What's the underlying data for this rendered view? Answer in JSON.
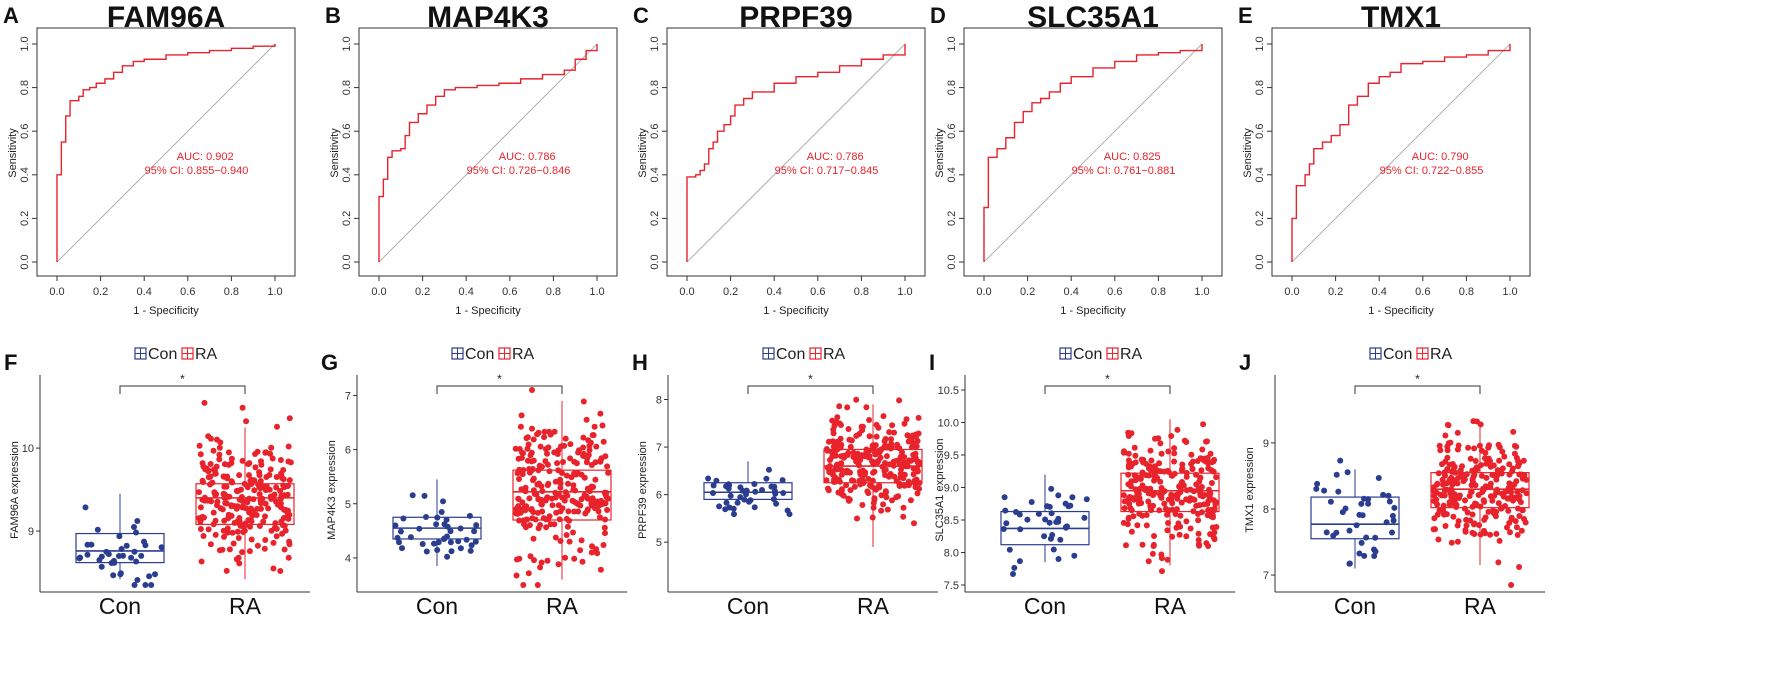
{
  "chart_data": [
    {
      "panel": "A",
      "type": "line",
      "title": "FAM96A",
      "xlabel": "1 - Specificity",
      "ylabel": "Sensitivity",
      "xlim": [
        0,
        1
      ],
      "ylim": [
        0,
        1
      ],
      "ticks": [
        "0.0",
        "0.2",
        "0.4",
        "0.6",
        "0.8",
        "1.0"
      ],
      "auc_text": "AUC: 0.902",
      "ci_text": "95% CI: 0.855−0.940",
      "roc": [
        [
          0,
          0
        ],
        [
          0,
          0.4
        ],
        [
          0.02,
          0.4
        ],
        [
          0.02,
          0.55
        ],
        [
          0.04,
          0.55
        ],
        [
          0.04,
          0.67
        ],
        [
          0.06,
          0.67
        ],
        [
          0.06,
          0.74
        ],
        [
          0.1,
          0.76
        ],
        [
          0.12,
          0.79
        ],
        [
          0.15,
          0.8
        ],
        [
          0.18,
          0.82
        ],
        [
          0.22,
          0.84
        ],
        [
          0.26,
          0.87
        ],
        [
          0.3,
          0.9
        ],
        [
          0.35,
          0.92
        ],
        [
          0.4,
          0.93
        ],
        [
          0.5,
          0.95
        ],
        [
          0.6,
          0.96
        ],
        [
          0.7,
          0.97
        ],
        [
          0.8,
          0.98
        ],
        [
          0.9,
          0.99
        ],
        [
          1.0,
          1.0
        ]
      ]
    },
    {
      "panel": "B",
      "type": "line",
      "title": "MAP4K3",
      "xlabel": "1 - Specificity",
      "ylabel": "Sensitivity",
      "xlim": [
        0,
        1
      ],
      "ylim": [
        0,
        1
      ],
      "ticks": [
        "0.0",
        "0.2",
        "0.4",
        "0.6",
        "0.8",
        "1.0"
      ],
      "auc_text": "AUC: 0.786",
      "ci_text": "95% CI: 0.726−0.846",
      "roc": [
        [
          0,
          0
        ],
        [
          0,
          0.3
        ],
        [
          0.02,
          0.38
        ],
        [
          0.04,
          0.48
        ],
        [
          0.06,
          0.51
        ],
        [
          0.1,
          0.52
        ],
        [
          0.12,
          0.58
        ],
        [
          0.14,
          0.64
        ],
        [
          0.18,
          0.68
        ],
        [
          0.22,
          0.72
        ],
        [
          0.26,
          0.76
        ],
        [
          0.3,
          0.79
        ],
        [
          0.35,
          0.8
        ],
        [
          0.45,
          0.81
        ],
        [
          0.55,
          0.82
        ],
        [
          0.65,
          0.84
        ],
        [
          0.75,
          0.86
        ],
        [
          0.85,
          0.88
        ],
        [
          0.9,
          0.93
        ],
        [
          0.95,
          0.97
        ],
        [
          1.0,
          1.0
        ]
      ]
    },
    {
      "panel": "C",
      "type": "line",
      "title": "PRPF39",
      "xlabel": "1 - Specificity",
      "ylabel": "Sensitivity",
      "xlim": [
        0,
        1
      ],
      "ylim": [
        0,
        1
      ],
      "ticks": [
        "0.0",
        "0.2",
        "0.4",
        "0.6",
        "0.8",
        "1.0"
      ],
      "auc_text": "AUC: 0.786",
      "ci_text": "95% CI: 0.717−0.845",
      "roc": [
        [
          0,
          0
        ],
        [
          0,
          0.39
        ],
        [
          0.04,
          0.4
        ],
        [
          0.06,
          0.42
        ],
        [
          0.08,
          0.45
        ],
        [
          0.1,
          0.52
        ],
        [
          0.12,
          0.55
        ],
        [
          0.14,
          0.6
        ],
        [
          0.17,
          0.63
        ],
        [
          0.2,
          0.67
        ],
        [
          0.22,
          0.72
        ],
        [
          0.26,
          0.75
        ],
        [
          0.3,
          0.78
        ],
        [
          0.4,
          0.82
        ],
        [
          0.5,
          0.85
        ],
        [
          0.6,
          0.87
        ],
        [
          0.7,
          0.9
        ],
        [
          0.8,
          0.93
        ],
        [
          0.9,
          0.95
        ],
        [
          1.0,
          1.0
        ]
      ]
    },
    {
      "panel": "D",
      "type": "line",
      "title": "SLC35A1",
      "xlabel": "1 - Specificity",
      "ylabel": "Sensitivity",
      "xlim": [
        0,
        1
      ],
      "ylim": [
        0,
        1
      ],
      "ticks": [
        "0.0",
        "0.2",
        "0.4",
        "0.6",
        "0.8",
        "1.0"
      ],
      "auc_text": "AUC: 0.825",
      "ci_text": "95% CI: 0.761−0.881",
      "roc": [
        [
          0,
          0
        ],
        [
          0,
          0.25
        ],
        [
          0.02,
          0.48
        ],
        [
          0.06,
          0.52
        ],
        [
          0.1,
          0.57
        ],
        [
          0.14,
          0.64
        ],
        [
          0.18,
          0.69
        ],
        [
          0.22,
          0.73
        ],
        [
          0.26,
          0.75
        ],
        [
          0.3,
          0.78
        ],
        [
          0.35,
          0.82
        ],
        [
          0.4,
          0.85
        ],
        [
          0.5,
          0.89
        ],
        [
          0.6,
          0.92
        ],
        [
          0.7,
          0.95
        ],
        [
          0.8,
          0.96
        ],
        [
          0.9,
          0.97
        ],
        [
          1.0,
          1.0
        ]
      ]
    },
    {
      "panel": "E",
      "type": "line",
      "title": "TMX1",
      "xlabel": "1 - Specificity",
      "ylabel": "Sensitivity",
      "xlim": [
        0,
        1
      ],
      "ylim": [
        0,
        1
      ],
      "ticks": [
        "0.0",
        "0.2",
        "0.4",
        "0.6",
        "0.8",
        "1.0"
      ],
      "auc_text": "AUC: 0.790",
      "ci_text": "95% CI: 0.722−0.855",
      "roc": [
        [
          0,
          0
        ],
        [
          0,
          0.2
        ],
        [
          0.02,
          0.35
        ],
        [
          0.06,
          0.4
        ],
        [
          0.08,
          0.45
        ],
        [
          0.1,
          0.52
        ],
        [
          0.14,
          0.55
        ],
        [
          0.18,
          0.58
        ],
        [
          0.22,
          0.63
        ],
        [
          0.26,
          0.72
        ],
        [
          0.3,
          0.76
        ],
        [
          0.35,
          0.82
        ],
        [
          0.4,
          0.85
        ],
        [
          0.45,
          0.87
        ],
        [
          0.5,
          0.91
        ],
        [
          0.6,
          0.92
        ],
        [
          0.7,
          0.94
        ],
        [
          0.8,
          0.95
        ],
        [
          0.9,
          0.97
        ],
        [
          1.0,
          1.0
        ]
      ]
    },
    {
      "panel": "F",
      "type": "box",
      "ylabel": "FAM96A expression",
      "categories": [
        "Con",
        "RA"
      ],
      "legend": [
        "Con",
        "RA"
      ],
      "significance": "*",
      "ylim": [
        8.35,
        10.7
      ],
      "yticks": [
        9,
        10
      ],
      "con": {
        "min": 8.42,
        "q1": 8.62,
        "median": 8.76,
        "q3": 8.97,
        "max": 9.45,
        "n": 40
      },
      "ra": {
        "min": 8.42,
        "q1": 9.08,
        "median": 9.4,
        "q3": 9.57,
        "max": 10.25,
        "n": 260
      }
    },
    {
      "panel": "G",
      "type": "box",
      "ylabel": "MAP4K3 expression",
      "categories": [
        "Con",
        "RA"
      ],
      "legend": [
        "Con",
        "RA"
      ],
      "significance": "*",
      "ylim": [
        3.5,
        7.1
      ],
      "yticks": [
        4,
        5,
        6,
        7
      ],
      "con": {
        "min": 3.85,
        "q1": 4.35,
        "median": 4.55,
        "q3": 4.75,
        "max": 5.45,
        "n": 40
      },
      "ra": {
        "min": 3.6,
        "q1": 4.7,
        "median": 5.22,
        "q3": 5.62,
        "max": 6.9,
        "n": 260
      }
    },
    {
      "panel": "H",
      "type": "box",
      "ylabel": "PRPF39 expression",
      "categories": [
        "Con",
        "RA"
      ],
      "legend": [
        "Con",
        "RA"
      ],
      "significance": "*",
      "ylim": [
        4.1,
        8.2
      ],
      "yticks": [
        5,
        6,
        7,
        8
      ],
      "con": {
        "min": 5.8,
        "q1": 5.9,
        "median": 6.05,
        "q3": 6.25,
        "max": 6.7,
        "n": 40
      },
      "ra": {
        "min": 4.9,
        "q1": 6.25,
        "median": 6.6,
        "q3": 6.95,
        "max": 7.9,
        "n": 260
      }
    },
    {
      "panel": "I",
      "type": "box",
      "ylabel": "SLC35A1 expression",
      "categories": [
        "Con",
        "RA"
      ],
      "legend": [
        "Con",
        "RA"
      ],
      "significance": "*",
      "ylim": [
        7.5,
        10.5
      ],
      "yticks": [
        7.5,
        8.0,
        8.5,
        9.0,
        9.5,
        10.0,
        10.5
      ],
      "con": {
        "min": 7.85,
        "q1": 8.12,
        "median": 8.37,
        "q3": 8.63,
        "max": 9.2,
        "n": 40
      },
      "ra": {
        "min": 7.8,
        "q1": 8.63,
        "median": 8.95,
        "q3": 9.22,
        "max": 10.05,
        "n": 260
      }
    },
    {
      "panel": "J",
      "type": "box",
      "ylabel": "TMX1 expression",
      "categories": [
        "Con",
        "RA"
      ],
      "legend": [
        "Con",
        "RA"
      ],
      "significance": "*",
      "ylim": [
        6.85,
        9.8
      ],
      "yticks": [
        7,
        8,
        9
      ],
      "con": {
        "min": 7.1,
        "q1": 7.55,
        "median": 7.77,
        "q3": 8.18,
        "max": 8.6,
        "n": 40
      },
      "ra": {
        "min": 7.15,
        "q1": 8.02,
        "median": 8.3,
        "q3": 8.55,
        "max": 9.3,
        "n": 260
      }
    }
  ],
  "colors": {
    "roc": "#e8232c",
    "diag": "#b0b0b0",
    "con": "#2b3d8f",
    "ra": "#e8232c"
  }
}
